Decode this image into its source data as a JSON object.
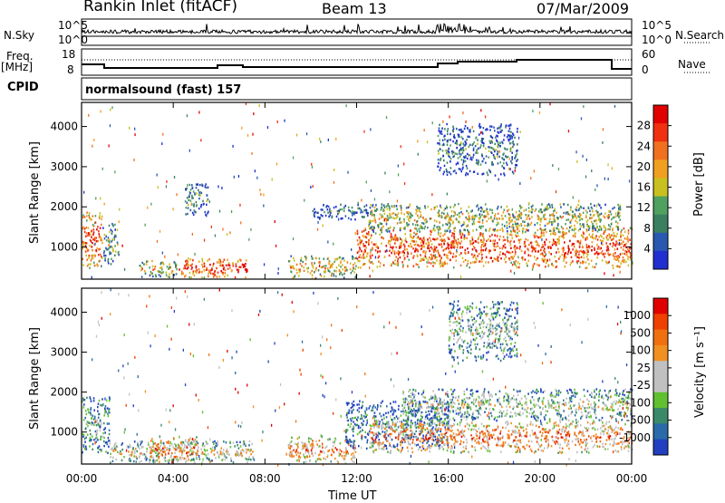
{
  "header": {
    "station": "Rankin Inlet (fitACF)",
    "beam": "Beam 13",
    "date": "07/Mar/2009"
  },
  "top_panels": {
    "nsky_label": "N.Sky",
    "nsearch_label": "N.Search",
    "nsky_ticks": [
      "10^5",
      "10^0"
    ],
    "nsearch_ticks": [
      "10^5",
      "10^0"
    ],
    "freq_label_1": "Freq.",
    "freq_label_2": "[MHz]",
    "freq_ticks": [
      "18",
      "8"
    ],
    "nave_label": "Nave",
    "nave_ticks": [
      "60",
      "0"
    ],
    "cpid_label": "CPID",
    "cpid_text": "normalsound (fast) 157"
  },
  "colors": {
    "power_scale": [
      "#2030d0",
      "#2858b0",
      "#3a8060",
      "#50a060",
      "#c8c020",
      "#f0a020",
      "#f07020",
      "#f03010",
      "#e00000"
    ],
    "velocity_scale": [
      "#2040c0",
      "#2a6aa8",
      "#3a8a6a",
      "#60c030",
      "#c0c0c0",
      "#c0c0c0",
      "#f09020",
      "#f07010",
      "#f04000",
      "#e00000"
    ]
  },
  "chart_data": [
    {
      "type": "heatmap",
      "name": "power",
      "ylabel": "Slant Range [km]",
      "xlabel": "",
      "y_ticks": [
        "1000",
        "2000",
        "3000",
        "4000"
      ],
      "ylim": [
        200,
        4600
      ],
      "x_ticks": [
        "00:00",
        "04:00",
        "08:00",
        "12:00",
        "16:00",
        "20:00",
        "00:00"
      ],
      "xlim": [
        0,
        24
      ],
      "colorbar_label": "Power [dB]",
      "colorbar_ticks": [
        "4",
        "8",
        "12",
        "16",
        "20",
        "24",
        "28"
      ],
      "clim": [
        0,
        32
      ],
      "regions": [
        {
          "t0": 0.0,
          "t1": 0.9,
          "r0": 500,
          "r1": 1900,
          "level": 0.82
        },
        {
          "t0": 0.9,
          "t1": 1.6,
          "r0": 600,
          "r1": 1600,
          "level": 0.45
        },
        {
          "t0": 2.5,
          "t1": 4.2,
          "r0": 250,
          "r1": 700,
          "level": 0.6
        },
        {
          "t0": 4.2,
          "t1": 7.2,
          "r0": 250,
          "r1": 750,
          "level": 0.88
        },
        {
          "t0": 4.5,
          "t1": 5.5,
          "r0": 1800,
          "r1": 2600,
          "level": 0.35
        },
        {
          "t0": 9.0,
          "t1": 12.0,
          "r0": 250,
          "r1": 800,
          "level": 0.62
        },
        {
          "t0": 10.0,
          "t1": 12.5,
          "r0": 1700,
          "r1": 2100,
          "level": 0.28
        },
        {
          "t0": 12.0,
          "t1": 24.0,
          "r0": 500,
          "r1": 1500,
          "level": 0.85
        },
        {
          "t0": 12.5,
          "t1": 23.5,
          "r0": 1400,
          "r1": 2100,
          "level": 0.55
        },
        {
          "t0": 15.5,
          "t1": 19.0,
          "r0": 2800,
          "r1": 4100,
          "level": 0.3
        }
      ]
    },
    {
      "type": "heatmap",
      "name": "velocity",
      "ylabel": "Slant Range [km]",
      "xlabel": "Time UT",
      "y_ticks": [
        "1000",
        "2000",
        "3000",
        "4000"
      ],
      "ylim": [
        200,
        4600
      ],
      "x_ticks": [
        "00:00",
        "04:00",
        "08:00",
        "12:00",
        "16:00",
        "20:00",
        "00:00"
      ],
      "xlim": [
        0,
        24
      ],
      "colorbar_label": "Velocity [m s⁻¹]",
      "colorbar_ticks": [
        "1000",
        "500",
        "100",
        "25",
        "-25",
        "-100",
        "-500",
        "-1000"
      ],
      "regions": [
        {
          "t0": 0.0,
          "t1": 1.2,
          "r0": 500,
          "r1": 1900,
          "level": 0.35
        },
        {
          "t0": 1.2,
          "t1": 7.5,
          "r0": 250,
          "r1": 800,
          "level": 0.55
        },
        {
          "t0": 3.0,
          "t1": 5.0,
          "r0": 250,
          "r1": 900,
          "level": 0.75
        },
        {
          "t0": 9.0,
          "t1": 12.0,
          "r0": 250,
          "r1": 900,
          "level": 0.72
        },
        {
          "t0": 11.5,
          "t1": 16.0,
          "r0": 600,
          "r1": 1800,
          "level": 0.25
        },
        {
          "t0": 12.5,
          "t1": 24.0,
          "r0": 500,
          "r1": 1300,
          "level": 0.75
        },
        {
          "t0": 14.0,
          "t1": 24.0,
          "r0": 1300,
          "r1": 2100,
          "level": 0.48
        },
        {
          "t0": 16.0,
          "t1": 19.0,
          "r0": 2800,
          "r1": 4300,
          "level": 0.4
        }
      ]
    }
  ]
}
